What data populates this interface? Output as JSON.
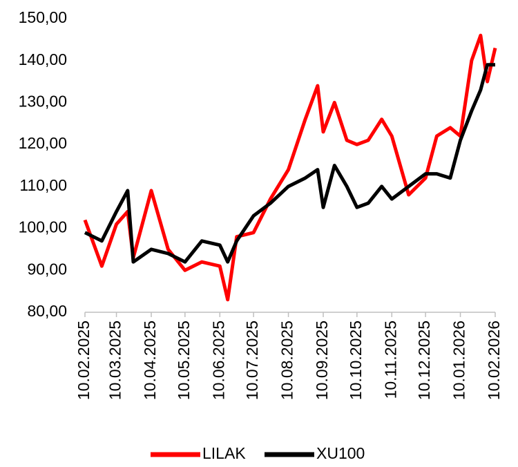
{
  "chart_data": {
    "type": "line",
    "x": [
      "10.02.2025",
      "25.02.2025",
      "10.03.2025",
      "20.03.2025",
      "25.03.2025",
      "10.04.2025",
      "25.04.2025",
      "10.05.2025",
      "25.05.2025",
      "10.06.2025",
      "17.06.2025",
      "25.06.2025",
      "10.07.2025",
      "25.07.2025",
      "10.08.2025",
      "25.08.2025",
      "05.09.2025",
      "10.09.2025",
      "20.09.2025",
      "01.10.2025",
      "10.10.2025",
      "20.10.2025",
      "01.11.2025",
      "10.11.2025",
      "25.11.2025",
      "10.12.2025",
      "20.12.2025",
      "01.01.2026",
      "10.01.2026",
      "20.01.2026",
      "28.01.2026",
      "03.02.2026",
      "10.02.2026"
    ],
    "series": [
      {
        "name": "LILAK",
        "color": "#ff0000",
        "values": [
          102,
          91,
          101,
          104,
          93,
          109,
          95,
          90,
          92,
          91,
          83,
          98,
          99,
          107,
          114,
          126,
          134,
          123,
          130,
          121,
          120,
          121,
          126,
          122,
          108,
          112,
          122,
          124,
          122,
          140,
          146,
          135,
          143
        ]
      },
      {
        "name": "XU100",
        "color": "#000000",
        "values": [
          99,
          97,
          104,
          109,
          92,
          95,
          94,
          92,
          97,
          96,
          92,
          97,
          103,
          106,
          110,
          112,
          114,
          105,
          115,
          110,
          105,
          106,
          110,
          107,
          110,
          113,
          113,
          112,
          121,
          128,
          133,
          139,
          139
        ]
      }
    ],
    "xlim": [
      "10.02.2025",
      "10.02.2026"
    ],
    "xticks": [
      "10.02.2025",
      "10.03.2025",
      "10.04.2025",
      "10.05.2025",
      "10.06.2025",
      "10.07.2025",
      "10.08.2025",
      "10.09.2025",
      "10.10.2025",
      "10.11.2025",
      "10.12.2025",
      "10.01.2026",
      "10.02.2026"
    ],
    "ylim": [
      80,
      150
    ],
    "yticks": [
      {
        "value": 80,
        "label": "80,00"
      },
      {
        "value": 90,
        "label": "90,00"
      },
      {
        "value": 100,
        "label": "100,00"
      },
      {
        "value": 110,
        "label": "110,00"
      },
      {
        "value": 120,
        "label": "120,00"
      },
      {
        "value": 130,
        "label": "130,00"
      },
      {
        "value": 140,
        "label": "140,00"
      },
      {
        "value": 150,
        "label": "150,00"
      }
    ],
    "grid": false,
    "legend": "bottom"
  }
}
